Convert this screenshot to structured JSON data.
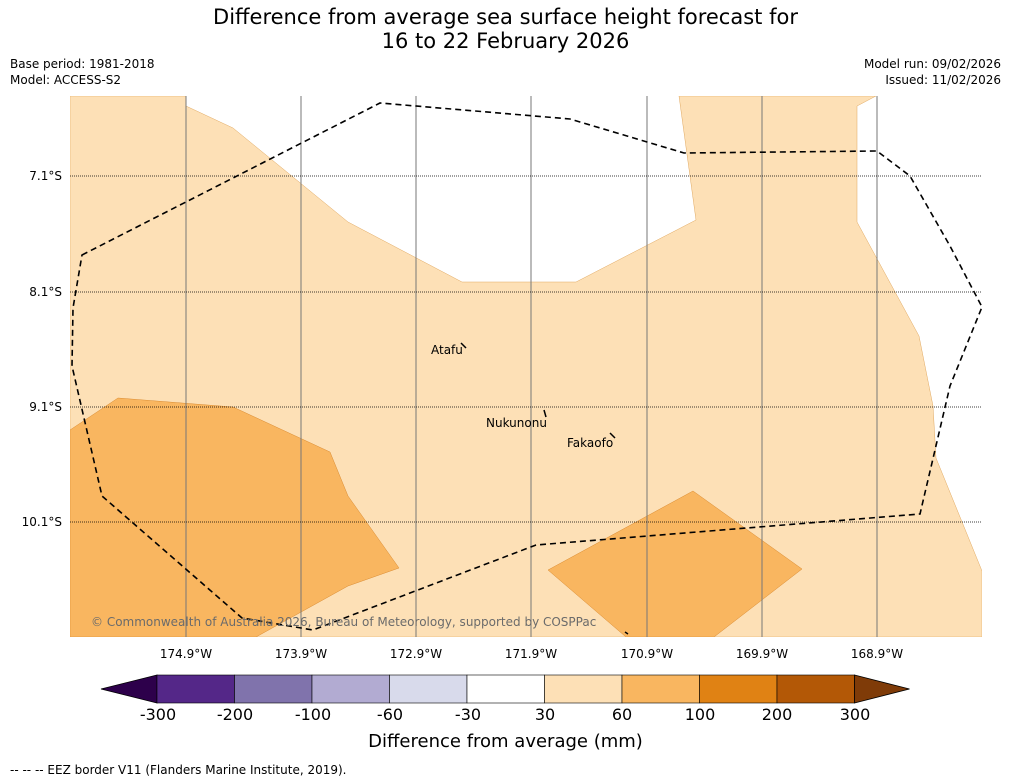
{
  "header": {
    "title_line1": "Difference from average sea surface height forecast for",
    "title_line2": "16 to 22 February 2026",
    "base_period": "Base period: 1981-2018",
    "model": "Model: ACCESS-S2",
    "model_run": "Model run: 09/02/2026",
    "issued": "Issued: 11/02/2026"
  },
  "map": {
    "lat_labels": [
      "7.1°S",
      "8.1°S",
      "9.1°S",
      "10.1°S"
    ],
    "lon_labels": [
      "174.9°W",
      "173.9°W",
      "172.9°W",
      "171.9°W",
      "170.9°W",
      "169.9°W",
      "168.9°W"
    ],
    "places": [
      "Atafu",
      "Nukunonu",
      "Fakaofo"
    ],
    "copyright": "© Commonwealth of Australia 2026, Bureau of Meteorology, supported by COSPPac",
    "colors": {
      "band_30_60": "#fde0b6",
      "band_60_100": "#f9b660",
      "eez": "#000000"
    }
  },
  "colorbar": {
    "ticks": [
      "-300",
      "-200",
      "-100",
      "-60",
      "-30",
      "30",
      "60",
      "100",
      "200",
      "300"
    ],
    "colors": [
      "#2d004b",
      "#542788",
      "#8073ac",
      "#b2abd2",
      "#d8daeb",
      "#ffffff",
      "#fde0b6",
      "#f9b660",
      "#e08214",
      "#b35806",
      "#7f3b08"
    ],
    "label": "Difference from average (mm)"
  },
  "footer": {
    "legend_text": "--  --  -- EEZ border V11 (Flanders Marine Institute, 2019)."
  }
}
